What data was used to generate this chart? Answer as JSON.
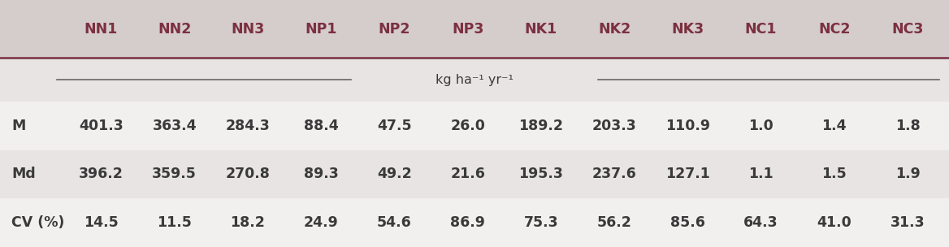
{
  "columns": [
    "NN1",
    "NN2",
    "NN3",
    "NP1",
    "NP2",
    "NP3",
    "NK1",
    "NK2",
    "NK3",
    "NC1",
    "NC2",
    "NC3"
  ],
  "row_labels": [
    "M",
    "Md",
    "CV (%)"
  ],
  "rows": [
    [
      "401.3",
      "363.4",
      "284.3",
      "88.4",
      "47.5",
      "26.0",
      "189.2",
      "203.3",
      "110.9",
      "1.0",
      "1.4",
      "1.8"
    ],
    [
      "396.2",
      "359.5",
      "270.8",
      "89.3",
      "49.2",
      "21.6",
      "195.3",
      "237.6",
      "127.1",
      "1.1",
      "1.5",
      "1.9"
    ],
    [
      "14.5",
      "11.5",
      "18.2",
      "24.9",
      "54.6",
      "86.9",
      "75.3",
      "56.2",
      "85.6",
      "64.3",
      "41.0",
      "31.3"
    ]
  ],
  "unit_label": "kg ha⁻¹ yr⁻¹",
  "header_bg": "#d5cccc",
  "row_bg_light": "#e8e4e4",
  "row_bg_white": "#f2efef",
  "header_text_color": "#7b3040",
  "data_text_color": "#3a3a3a",
  "separator_color": "#7b3040",
  "line_color": "#666666",
  "header_fontsize": 12.5,
  "data_fontsize": 12.5,
  "unit_fontsize": 11.5
}
